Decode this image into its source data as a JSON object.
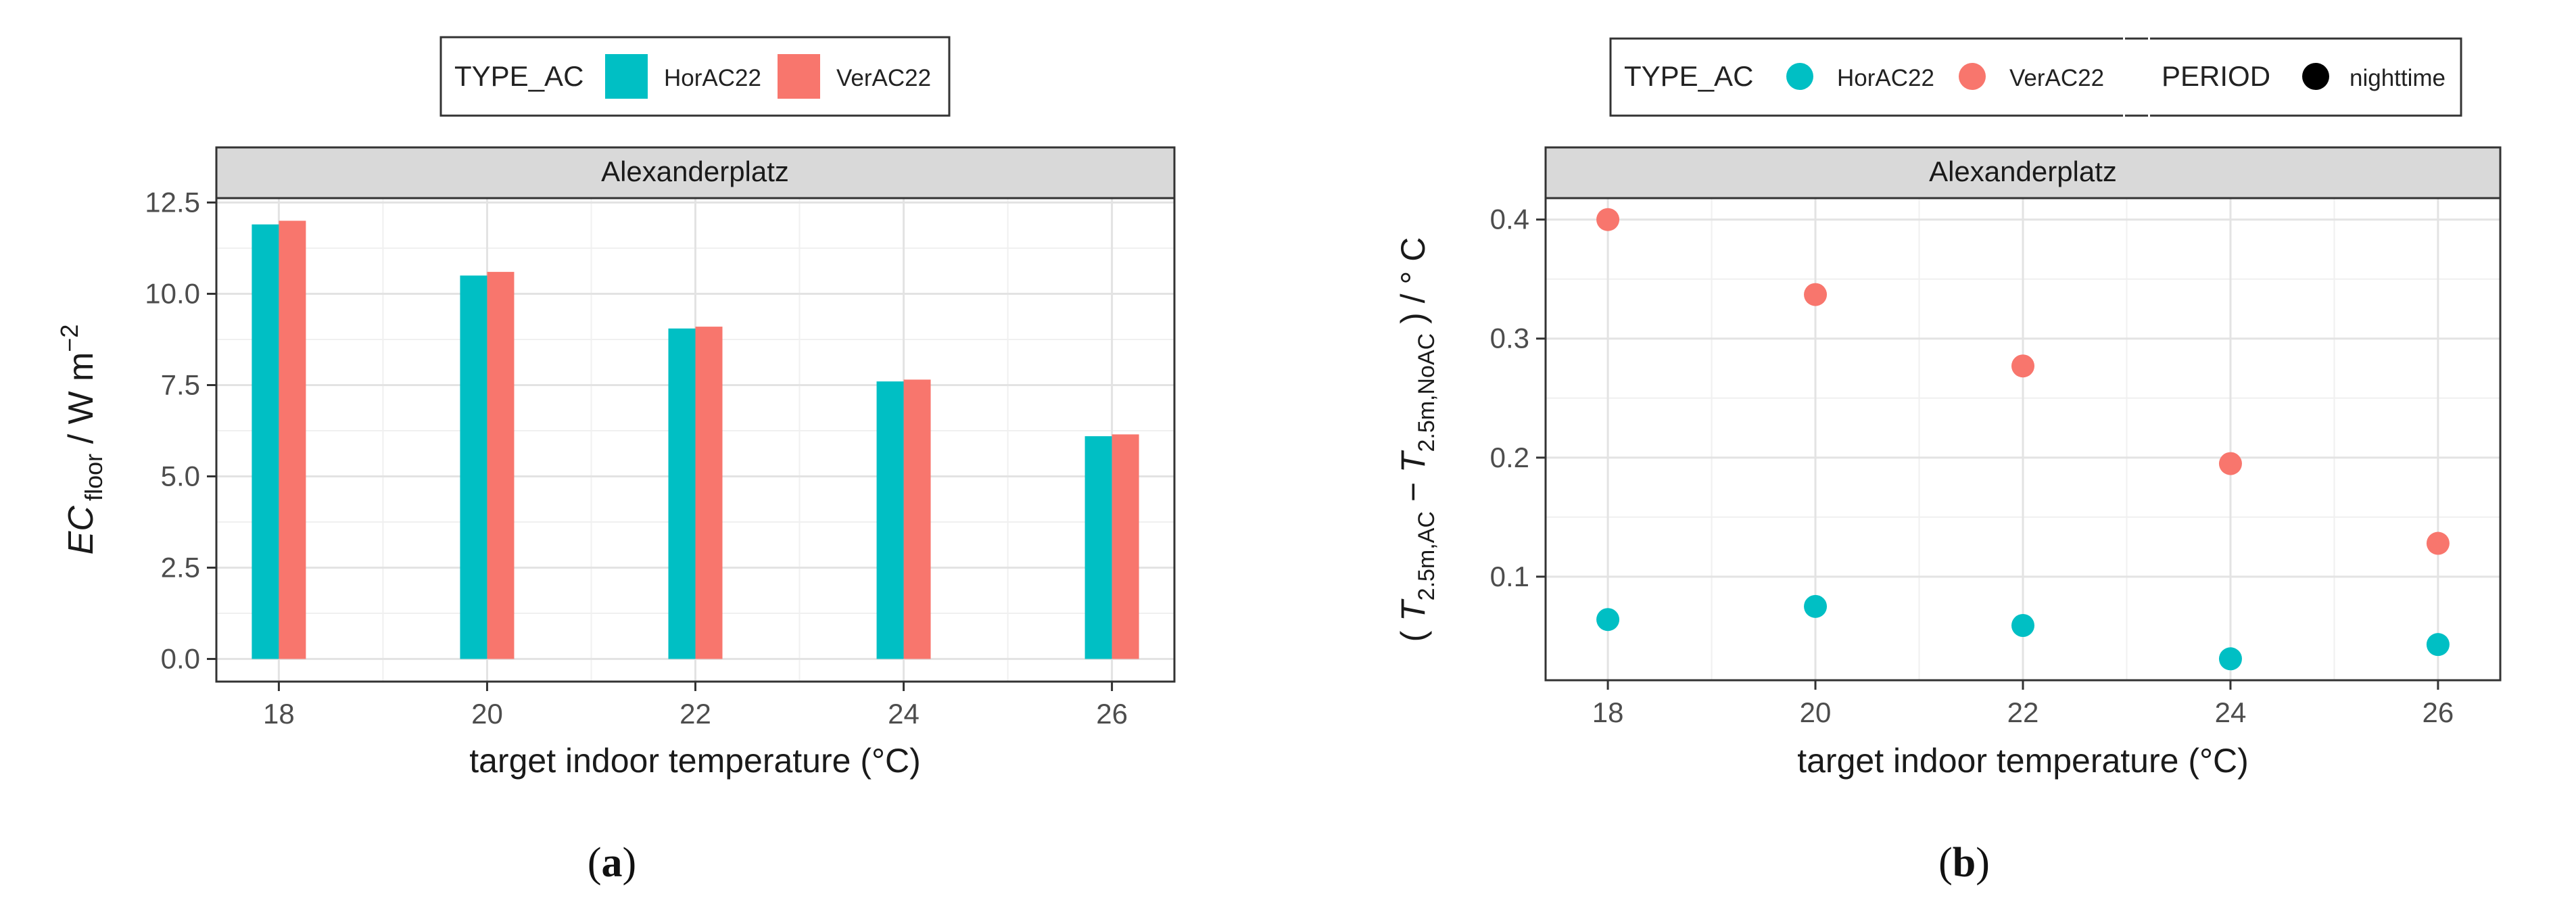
{
  "chart_data": [
    {
      "type": "bar",
      "panel_label_paren_open": "(",
      "panel_label_letter": "a",
      "panel_label_paren_close": ")",
      "facet_title": "Alexanderplatz",
      "legend_title": "TYPE_AC",
      "xlabel": "target indoor temperature (°C)",
      "ylabel_main": "EC",
      "ylabel_sub": "floor",
      "ylabel_unit": " / W m",
      "ylabel_sup": "−2",
      "categories": [
        "18",
        "20",
        "22",
        "24",
        "26"
      ],
      "x_values": [
        18,
        20,
        22,
        24,
        26
      ],
      "yticks": [
        0.0,
        2.5,
        5.0,
        7.5,
        10.0,
        12.5
      ],
      "ytick_labels": [
        "0.0",
        "2.5",
        "5.0",
        "7.5",
        "10.0",
        "12.5"
      ],
      "ylim": [
        -0.62,
        12.62
      ],
      "series": [
        {
          "name": "HorAC22",
          "color": "#00BFC4",
          "values": [
            11.9,
            10.5,
            9.05,
            7.6,
            6.1
          ]
        },
        {
          "name": "VerAC22",
          "color": "#F8766D",
          "values": [
            12.0,
            10.6,
            9.1,
            7.65,
            6.15
          ]
        }
      ]
    },
    {
      "type": "scatter",
      "panel_label_paren_open": "(",
      "panel_label_letter": "b",
      "panel_label_paren_close": ")",
      "facet_title": "Alexanderplatz",
      "legend_title": "TYPE_AC",
      "legend_title_2": "PERIOD",
      "period_entry": {
        "name": "nighttime",
        "color": "#000000"
      },
      "xlabel": "target indoor temperature (°C)",
      "ylabel_open": "( ",
      "ylabel_T1": "T",
      "ylabel_sub1": "2.5m,AC",
      "ylabel_minus": " − ",
      "ylabel_T2": "T",
      "ylabel_sub2": "2.5m,NoAC",
      "ylabel_close": " ) / ° C",
      "categories": [
        "18",
        "20",
        "22",
        "24",
        "26"
      ],
      "x_values": [
        18,
        20,
        22,
        24,
        26
      ],
      "yticks": [
        0.1,
        0.2,
        0.3,
        0.4
      ],
      "ytick_labels": [
        "0.1",
        "0.2",
        "0.3",
        "0.4"
      ],
      "ylim": [
        0.013,
        0.418
      ],
      "series": [
        {
          "name": "HorAC22",
          "color": "#00BFC4",
          "values": [
            0.064,
            0.075,
            0.059,
            0.031,
            0.043
          ]
        },
        {
          "name": "VerAC22",
          "color": "#F8766D",
          "values": [
            0.4,
            0.337,
            0.277,
            0.195,
            0.128
          ]
        }
      ]
    }
  ]
}
